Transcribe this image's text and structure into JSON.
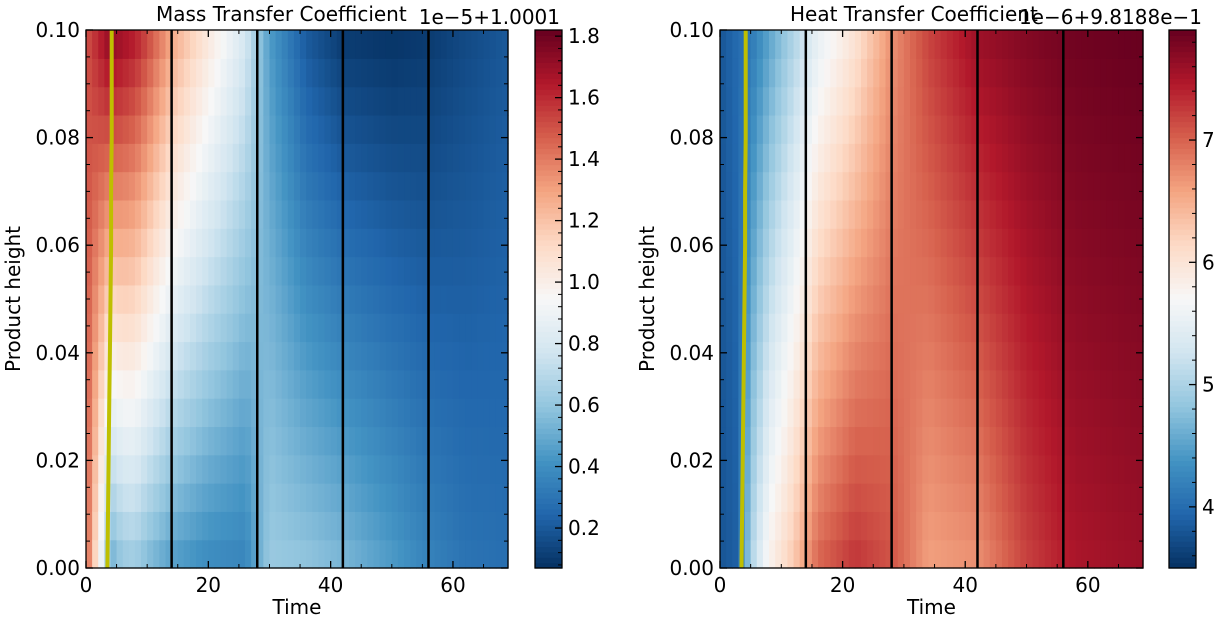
{
  "chart_data": [
    {
      "type": "heatmap",
      "title": "Mass Transfer Coefficient",
      "xlabel": "Time",
      "ylabel": "Product height",
      "xlim": [
        0,
        69
      ],
      "ylim": [
        0,
        0.1
      ],
      "xticks": [
        "0",
        "20",
        "40",
        "60"
      ],
      "yticks": [
        "0.00",
        "0.02",
        "0.04",
        "0.06",
        "0.08",
        "0.10"
      ],
      "offset_text": "1e−5+1.0001",
      "colorbar": {
        "ticks": [
          "0.2",
          "0.4",
          "0.6",
          "0.8",
          "1.0",
          "1.2",
          "1.4",
          "1.6",
          "1.8"
        ],
        "range": [
          0.07,
          1.82
        ],
        "colormap": "RdBu_r"
      },
      "vertical_lines_x": [
        14,
        28,
        42,
        56
      ],
      "front_curve": [
        [
          3.5,
          0.0
        ],
        [
          3.6,
          0.01
        ],
        [
          3.7,
          0.02
        ],
        [
          3.8,
          0.03
        ],
        [
          3.9,
          0.04
        ],
        [
          4.0,
          0.05
        ],
        [
          4.1,
          0.06
        ],
        [
          4.1,
          0.07
        ],
        [
          4.2,
          0.08
        ],
        [
          4.2,
          0.09
        ],
        [
          4.2,
          0.1
        ]
      ],
      "front_curve_color": "#bfbf00",
      "value_field_profiles": {
        "time": [
          0,
          4,
          6,
          8,
          10,
          14,
          20,
          26,
          30,
          36,
          42,
          50,
          56,
          62,
          69
        ],
        "bottom": [
          1.5,
          0.5,
          0.6,
          0.62,
          0.55,
          0.45,
          0.38,
          0.36,
          0.62,
          0.6,
          0.55,
          0.45,
          0.36,
          0.3,
          0.28
        ],
        "top": [
          1.5,
          1.75,
          1.7,
          1.65,
          1.55,
          1.3,
          1.05,
          0.8,
          0.45,
          0.2,
          0.1,
          0.08,
          0.1,
          0.15,
          0.2
        ]
      }
    },
    {
      "type": "heatmap",
      "title": "Heat Transfer Coefficient",
      "xlabel": "Time",
      "ylabel": "Product height",
      "xlim": [
        0,
        69
      ],
      "ylim": [
        0,
        0.1
      ],
      "xticks": [
        "0",
        "20",
        "40",
        "60"
      ],
      "yticks": [
        "0.00",
        "0.02",
        "0.04",
        "0.06",
        "0.08",
        "0.10"
      ],
      "offset_text": "1e−6+9.8188e−1",
      "colorbar": {
        "ticks": [
          "4",
          "5",
          "6",
          "7"
        ],
        "range": [
          3.5,
          7.9
        ],
        "colormap": "RdBu_r"
      },
      "vertical_lines_x": [
        14,
        28,
        42,
        56
      ],
      "front_curve": [
        [
          3.5,
          0.0
        ],
        [
          3.6,
          0.01
        ],
        [
          3.7,
          0.02
        ],
        [
          3.8,
          0.03
        ],
        [
          3.9,
          0.04
        ],
        [
          4.0,
          0.05
        ],
        [
          4.1,
          0.06
        ],
        [
          4.1,
          0.07
        ],
        [
          4.2,
          0.08
        ],
        [
          4.2,
          0.09
        ],
        [
          4.2,
          0.1
        ]
      ],
      "front_curve_color": "#bfbf00",
      "value_field_profiles": {
        "time": [
          0,
          3,
          5,
          8,
          12,
          16,
          22,
          28,
          34,
          42,
          50,
          58,
          69
        ],
        "bottom": [
          3.8,
          3.9,
          5.0,
          5.8,
          6.3,
          7.0,
          7.3,
          7.1,
          6.6,
          6.7,
          7.2,
          7.5,
          7.6
        ],
        "top": [
          3.8,
          4.0,
          4.1,
          4.5,
          5.0,
          5.5,
          6.0,
          6.7,
          7.2,
          7.6,
          7.75,
          7.85,
          7.9
        ]
      }
    }
  ]
}
